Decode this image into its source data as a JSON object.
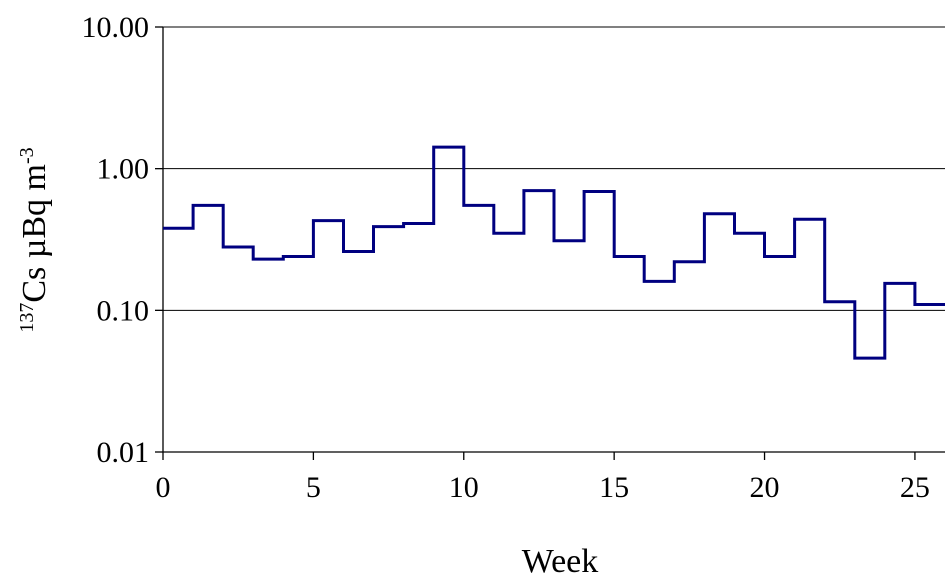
{
  "chart_data": {
    "type": "line",
    "step": true,
    "y_scale": "log",
    "xlabel": "Week",
    "ylabel_superscript": "137",
    "ylabel_main": "Cs µBq m",
    "ylabel_unit_exponent": "-3",
    "xlim": [
      0,
      26
    ],
    "ylim": [
      0.01,
      10
    ],
    "x_ticks": [
      "0",
      "5",
      "10",
      "15",
      "20",
      "25"
    ],
    "x_tick_values": [
      0,
      5,
      10,
      15,
      20,
      25
    ],
    "y_ticks": [
      "10.00",
      "1.00",
      "0.10",
      "0.01"
    ],
    "y_tick_values": [
      10,
      1,
      0.1,
      0.01
    ],
    "grid_y": true,
    "grid_x": false,
    "line_color": "#000080",
    "series": [
      {
        "x_start": [
          0,
          1,
          2,
          3,
          4,
          5,
          6,
          7,
          8,
          9,
          10,
          11,
          12,
          13,
          14,
          15,
          16,
          17,
          18,
          19,
          20,
          21,
          22,
          23,
          24,
          25
        ],
        "x_end": [
          1,
          2,
          3,
          4,
          5,
          6,
          7,
          8,
          9,
          10,
          11,
          12,
          13,
          14,
          15,
          16,
          17,
          18,
          19,
          20,
          21,
          22,
          23,
          24,
          25,
          26
        ],
        "values": [
          0.38,
          0.55,
          0.28,
          0.23,
          0.24,
          0.43,
          0.26,
          0.39,
          0.41,
          1.42,
          0.55,
          0.35,
          0.7,
          0.31,
          0.69,
          0.24,
          0.16,
          0.22,
          0.48,
          0.35,
          0.24,
          0.44,
          0.115,
          0.046,
          0.155,
          0.11
        ]
      }
    ]
  }
}
